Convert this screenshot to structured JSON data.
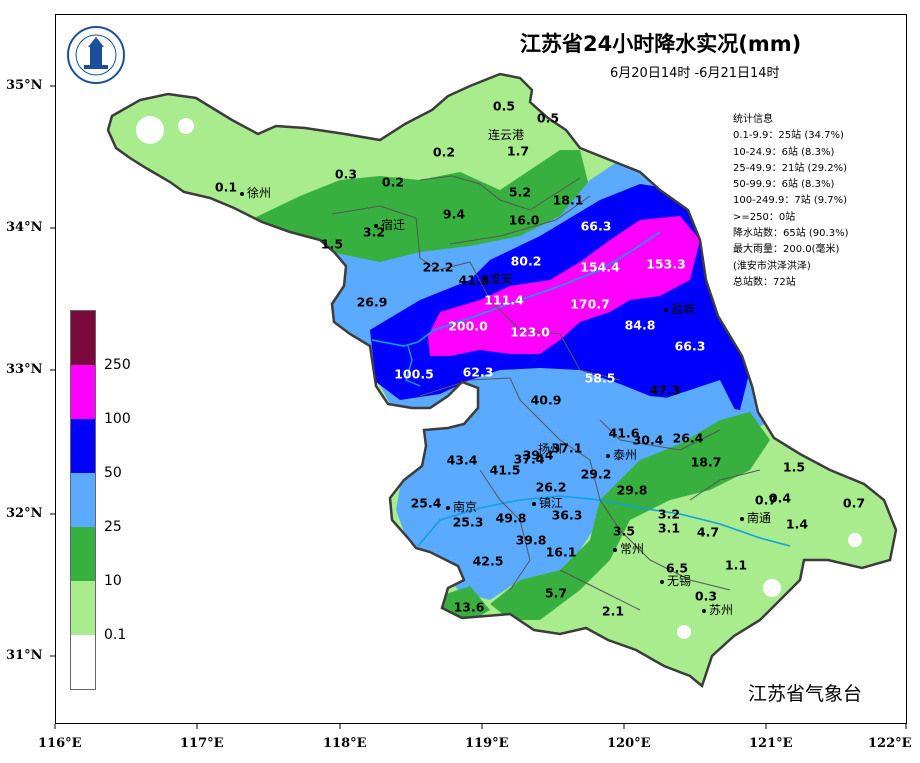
{
  "title": "江苏省24小时降水实况(mm)",
  "subtitle": "6月20日14时 -6月21日14时",
  "agency": "江苏省气象台",
  "axes": {
    "x_ticks": [
      "116°E",
      "117°E",
      "118°E",
      "119°E",
      "120°E",
      "121°E",
      "122°E"
    ],
    "y_ticks": [
      "35°N",
      "34°N",
      "33°N",
      "32°N",
      "31°N"
    ]
  },
  "stats": {
    "heading": "统计信息",
    "lines": [
      "0.1-9.9：25站 (34.7%)",
      "10-24.9：6站 (8.3%)",
      "25-49.9：21站 (29.2%)",
      "50-99.9：6站 (8.3%)",
      "100-249.9：7站 (9.7%)",
      ">=250：0站",
      "降水站数：65站 (90.3%)",
      "最大雨量：200.0(毫米)",
      "(淮安市洪泽洪泽)",
      "总站数：72站"
    ]
  },
  "legend": {
    "labels": [
      "250",
      "100",
      "50",
      "25",
      "10",
      "0.1"
    ],
    "colors": [
      "#7a0a3c",
      "#ff00ff",
      "#0000ff",
      "#5aaaff",
      "#38b040",
      "#a8ec8e",
      "#ffffff"
    ]
  },
  "colors": {
    "lt": "#a8ec8e",
    "md": "#38b040",
    "sk": "#5aaaff",
    "bl": "#0000ff",
    "mg": "#ff00ff",
    "border": "#3c3c3c",
    "river": "#10a0e0"
  },
  "cities": [
    "徐州",
    "宿迁",
    "连云港",
    "淮安",
    "盐城",
    "扬州",
    "泰州",
    "南京",
    "镇江",
    "南通",
    "常州",
    "无锡",
    "苏州"
  ],
  "stations": [
    {
      "v": "0.5",
      "dark": false
    },
    {
      "v": "0.5",
      "dark": false
    },
    {
      "v": "1.7",
      "dark": false
    },
    {
      "v": "0.2",
      "dark": false
    },
    {
      "v": "0.3",
      "dark": false
    },
    {
      "v": "0.2",
      "dark": false
    },
    {
      "v": "0.1",
      "dark": false
    },
    {
      "v": "5.2",
      "dark": false
    },
    {
      "v": "18.1",
      "dark": false
    },
    {
      "v": "9.4",
      "dark": false
    },
    {
      "v": "16.0",
      "dark": false
    },
    {
      "v": "3.2",
      "dark": false
    },
    {
      "v": "1.5",
      "dark": false
    },
    {
      "v": "66.3",
      "dark": true
    },
    {
      "v": "80.2",
      "dark": true
    },
    {
      "v": "22.2",
      "dark": false
    },
    {
      "v": "41.3",
      "dark": false
    },
    {
      "v": "154.4",
      "dark": true
    },
    {
      "v": "153.3",
      "dark": true
    },
    {
      "v": "111.4",
      "dark": true
    },
    {
      "v": "170.7",
      "dark": true
    },
    {
      "v": "26.9",
      "dark": false
    },
    {
      "v": "200.0",
      "dark": true
    },
    {
      "v": "123.0",
      "dark": true
    },
    {
      "v": "84.8",
      "dark": true
    },
    {
      "v": "66.3",
      "dark": true
    },
    {
      "v": "100.5",
      "dark": true
    },
    {
      "v": "62.3",
      "dark": true
    },
    {
      "v": "58.5",
      "dark": true
    },
    {
      "v": "47.3",
      "dark": false
    },
    {
      "v": "40.9",
      "dark": false
    },
    {
      "v": "41.6",
      "dark": false
    },
    {
      "v": "30.4",
      "dark": false
    },
    {
      "v": "26.4",
      "dark": false
    },
    {
      "v": "39.4",
      "dark": false
    },
    {
      "v": "37.1",
      "dark": false
    },
    {
      "v": "43.4",
      "dark": false
    },
    {
      "v": "37.4",
      "dark": false
    },
    {
      "v": "41.5",
      "dark": false
    },
    {
      "v": "18.7",
      "dark": false
    },
    {
      "v": "1.5",
      "dark": false
    },
    {
      "v": "29.2",
      "dark": false
    },
    {
      "v": "26.2",
      "dark": false
    },
    {
      "v": "29.8",
      "dark": false
    },
    {
      "v": "0.7",
      "dark": false
    },
    {
      "v": "0.4",
      "dark": false
    },
    {
      "v": "0.7",
      "dark": false
    },
    {
      "v": "25.4",
      "dark": false
    },
    {
      "v": "25.3",
      "dark": false
    },
    {
      "v": "49.8",
      "dark": false
    },
    {
      "v": "36.3",
      "dark": false
    },
    {
      "v": "3.2",
      "dark": false
    },
    {
      "v": "3.5",
      "dark": false
    },
    {
      "v": "3.1",
      "dark": false
    },
    {
      "v": "4.7",
      "dark": false
    },
    {
      "v": "1.4",
      "dark": false
    },
    {
      "v": "39.8",
      "dark": false
    },
    {
      "v": "16.1",
      "dark": false
    },
    {
      "v": "42.5",
      "dark": false
    },
    {
      "v": "6.5",
      "dark": false
    },
    {
      "v": "1.1",
      "dark": false
    },
    {
      "v": "5.7",
      "dark": false
    },
    {
      "v": "0.3",
      "dark": false
    },
    {
      "v": "2.1",
      "dark": false
    },
    {
      "v": "13.6",
      "dark": false
    }
  ]
}
